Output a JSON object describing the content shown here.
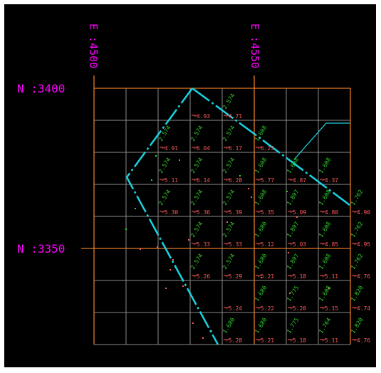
{
  "labels": {
    "east_left": "E :4500",
    "east_right": "E :4550",
    "north_top": "N :3400",
    "north_mid": "N :3350"
  },
  "colors": {
    "background": "#000000",
    "grid": "#8a8a8a",
    "axis": "#e07a28",
    "coord_text": "#ff00ff",
    "boundary": "#19d3df",
    "upper_value": "#2fd02f",
    "lower_value": "#ff5a5a"
  },
  "cells": [
    {
      "row": 0,
      "col": 3,
      "top": "",
      "bottom": "-4.93"
    },
    {
      "row": 0,
      "col": 4,
      "top": "2.574",
      "bottom": "-4.71"
    },
    {
      "row": 1,
      "col": 2,
      "top": "2.574",
      "bottom": "-4.91"
    },
    {
      "row": 1,
      "col": 3,
      "top": "2.574",
      "bottom": "-6.04"
    },
    {
      "row": 1,
      "col": 4,
      "top": "2.574",
      "bottom": "-6.17"
    },
    {
      "row": 1,
      "col": 5,
      "top": "1.608",
      "bottom": "-6.23"
    },
    {
      "row": 2,
      "col": 2,
      "top": "2.574",
      "bottom": "-5.11"
    },
    {
      "row": 2,
      "col": 3,
      "top": "2.574",
      "bottom": "-6.14"
    },
    {
      "row": 2,
      "col": 4,
      "top": "2.574",
      "bottom": "-6.28"
    },
    {
      "row": 2,
      "col": 5,
      "top": "1.608",
      "bottom": "-5.77"
    },
    {
      "row": 2,
      "col": 6,
      "top": "1.608",
      "bottom": "-4.87"
    },
    {
      "row": 2,
      "col": 7,
      "top": "1.608",
      "bottom": "-4.37"
    },
    {
      "row": 3,
      "col": 2,
      "top": "2.574",
      "bottom": "-5.30"
    },
    {
      "row": 3,
      "col": 3,
      "top": "2.574",
      "bottom": "-5.36"
    },
    {
      "row": 3,
      "col": 4,
      "top": "2.574",
      "bottom": "-5.39"
    },
    {
      "row": 3,
      "col": 5,
      "top": "1.608",
      "bottom": "-5.35"
    },
    {
      "row": 3,
      "col": 6,
      "top": "1.897",
      "bottom": "-5.09"
    },
    {
      "row": 3,
      "col": 7,
      "top": "1.608",
      "bottom": "-4.80"
    },
    {
      "row": 3,
      "col": 8,
      "top": "1.762",
      "bottom": "-4.90"
    },
    {
      "row": 4,
      "col": 3,
      "top": "2.574",
      "bottom": "-5.33"
    },
    {
      "row": 4,
      "col": 4,
      "top": "2.574",
      "bottom": "-5.33"
    },
    {
      "row": 4,
      "col": 5,
      "top": "1.680",
      "bottom": "-5.12"
    },
    {
      "row": 4,
      "col": 6,
      "top": "1.897",
      "bottom": "-5.03"
    },
    {
      "row": 4,
      "col": 7,
      "top": "1.608",
      "bottom": "-4.85"
    },
    {
      "row": 4,
      "col": 8,
      "top": "1.762",
      "bottom": "-4.95"
    },
    {
      "row": 5,
      "col": 3,
      "top": "2.574",
      "bottom": "-5.26"
    },
    {
      "row": 5,
      "col": 4,
      "top": "2.574",
      "bottom": "-5.29"
    },
    {
      "row": 5,
      "col": 5,
      "top": "1.680",
      "bottom": "-5.21"
    },
    {
      "row": 5,
      "col": 6,
      "top": "1.897",
      "bottom": "-5.18"
    },
    {
      "row": 5,
      "col": 7,
      "top": "1.608",
      "bottom": "-5.11"
    },
    {
      "row": 5,
      "col": 8,
      "top": "1.762",
      "bottom": "-4.76"
    },
    {
      "row": 6,
      "col": 4,
      "top": "",
      "bottom": "-5.24"
    },
    {
      "row": 6,
      "col": 5,
      "top": "1.680",
      "bottom": "-5.22"
    },
    {
      "row": 6,
      "col": 6,
      "top": "1.775",
      "bottom": "-5.20"
    },
    {
      "row": 6,
      "col": 7,
      "top": "1.608",
      "bottom": "-5.15"
    },
    {
      "row": 6,
      "col": 8,
      "top": "1.820",
      "bottom": "-4.74"
    },
    {
      "row": 7,
      "col": 3,
      "top": "",
      "bottom": ""
    },
    {
      "row": 7,
      "col": 4,
      "top": "1.680",
      "bottom": "-5.28"
    },
    {
      "row": 7,
      "col": 5,
      "top": "1.680",
      "bottom": "-5.21"
    },
    {
      "row": 7,
      "col": 6,
      "top": "1.775",
      "bottom": "-5.18"
    },
    {
      "row": 7,
      "col": 7,
      "top": "1.764",
      "bottom": "-5.11"
    },
    {
      "row": 7,
      "col": 8,
      "top": "1.820",
      "bottom": "-4.76"
    }
  ]
}
